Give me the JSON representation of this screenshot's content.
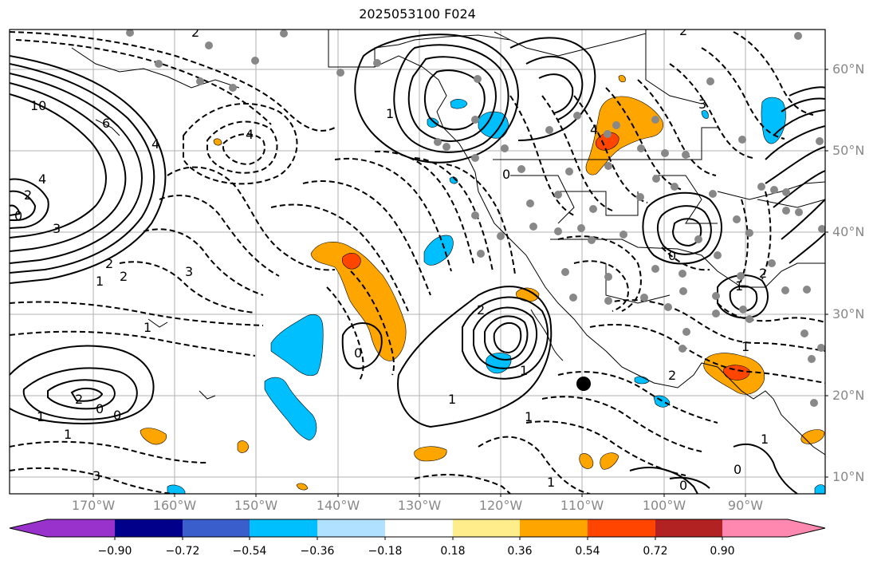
{
  "title": "2025053100 F024",
  "lat_labels": [
    "60°N",
    "50°N",
    "40°N",
    "30°N",
    "20°N",
    "10°N"
  ],
  "lon_labels": [
    "170°W",
    "160°W",
    "150°W",
    "140°W",
    "130°W",
    "120°W",
    "110°W",
    "100°W",
    "90°W"
  ],
  "colorbar": {
    "tick_labels": [
      "−0.90",
      "−0.72",
      "−0.54",
      "−0.36",
      "−0.18",
      "0.18",
      "0.36",
      "0.54",
      "0.72",
      "0.90"
    ],
    "colors": [
      "#9932cc",
      "#00008b",
      "#3a5fcd",
      "#00bfff",
      "#b0e2ff",
      "#ffffff",
      "#ffec8b",
      "#ffa500",
      "#ff4500",
      "#b22222",
      "#ff88b0"
    ]
  },
  "contour_labels": [
    "10",
    "6",
    "4",
    "2",
    "0",
    "3",
    "2",
    "1",
    "4",
    "3",
    "2",
    "1",
    "0",
    "1",
    "2",
    "3",
    "4",
    "0",
    "1",
    "2",
    "1",
    "0",
    "1",
    "2",
    "1",
    "0",
    "1",
    "0",
    "1",
    "2",
    "3",
    "4",
    "0",
    "1",
    "2",
    "1",
    "0",
    "1",
    "2"
  ],
  "colors": {
    "positive_anomaly": "#ffa500",
    "strong_positive": "#ff4500",
    "negative_anomaly": "#00bfff",
    "stations": "#888888",
    "grid": "#b0b0b0"
  }
}
